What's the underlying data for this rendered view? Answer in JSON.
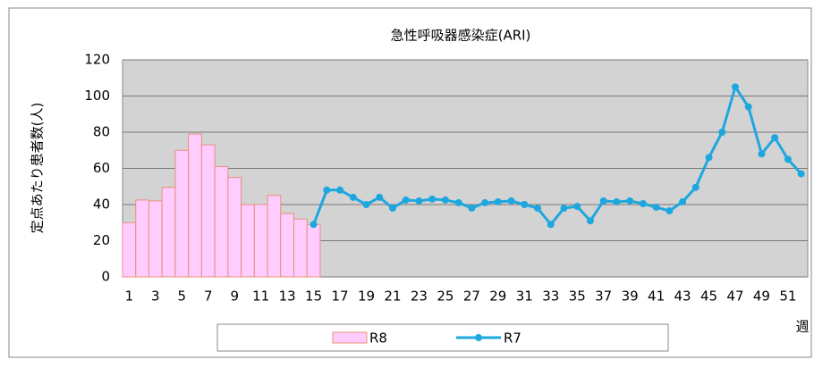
{
  "chart_data": {
    "type": "bar_line",
    "title": "急性呼吸器感染症(ARI)",
    "ylabel": "定点あたり患者数(人)",
    "xlabel": "週",
    "categories": [
      1,
      null,
      3,
      null,
      5,
      null,
      7,
      null,
      9,
      null,
      11,
      null,
      13,
      null,
      15,
      null,
      17,
      null,
      19,
      null,
      21,
      null,
      23,
      null,
      25,
      null,
      27,
      null,
      29,
      null,
      31,
      null,
      33,
      null,
      35,
      null,
      37,
      null,
      39,
      null,
      41,
      null,
      43,
      null,
      45,
      null,
      47,
      null,
      49,
      null,
      51,
      null
    ],
    "series": [
      {
        "name": "R8",
        "type": "bar",
        "color": "#ffccff",
        "edge": "#e8907a",
        "values": [
          30,
          42.5,
          42,
          49.5,
          70,
          79,
          73,
          61,
          55,
          40,
          40,
          45,
          35,
          32,
          29,
          null,
          null,
          null,
          null,
          null,
          null,
          null,
          null,
          null,
          null,
          null,
          null,
          null,
          null,
          null,
          null,
          null,
          null,
          null,
          null,
          null,
          null,
          null,
          null,
          null,
          null,
          null,
          null,
          null,
          null,
          null,
          null,
          null,
          null,
          null,
          null,
          null
        ]
      },
      {
        "name": "R7",
        "type": "line",
        "color": "#1ea7df",
        "values": [
          null,
          null,
          null,
          null,
          null,
          null,
          null,
          null,
          null,
          null,
          null,
          null,
          null,
          null,
          29,
          48,
          48,
          44,
          40,
          44,
          38,
          42.5,
          42,
          43,
          42.5,
          41,
          38,
          41,
          41.5,
          42,
          40,
          38,
          29,
          38,
          39,
          31,
          42,
          41.5,
          42,
          40.5,
          38.5,
          36.5,
          41.5,
          49.5,
          66,
          80,
          105,
          94,
          68,
          77,
          65,
          57
        ]
      }
    ],
    "ylim": [
      0,
      120
    ],
    "yticks": [
      0,
      20,
      40,
      60,
      80,
      100,
      120
    ],
    "grid": true
  }
}
